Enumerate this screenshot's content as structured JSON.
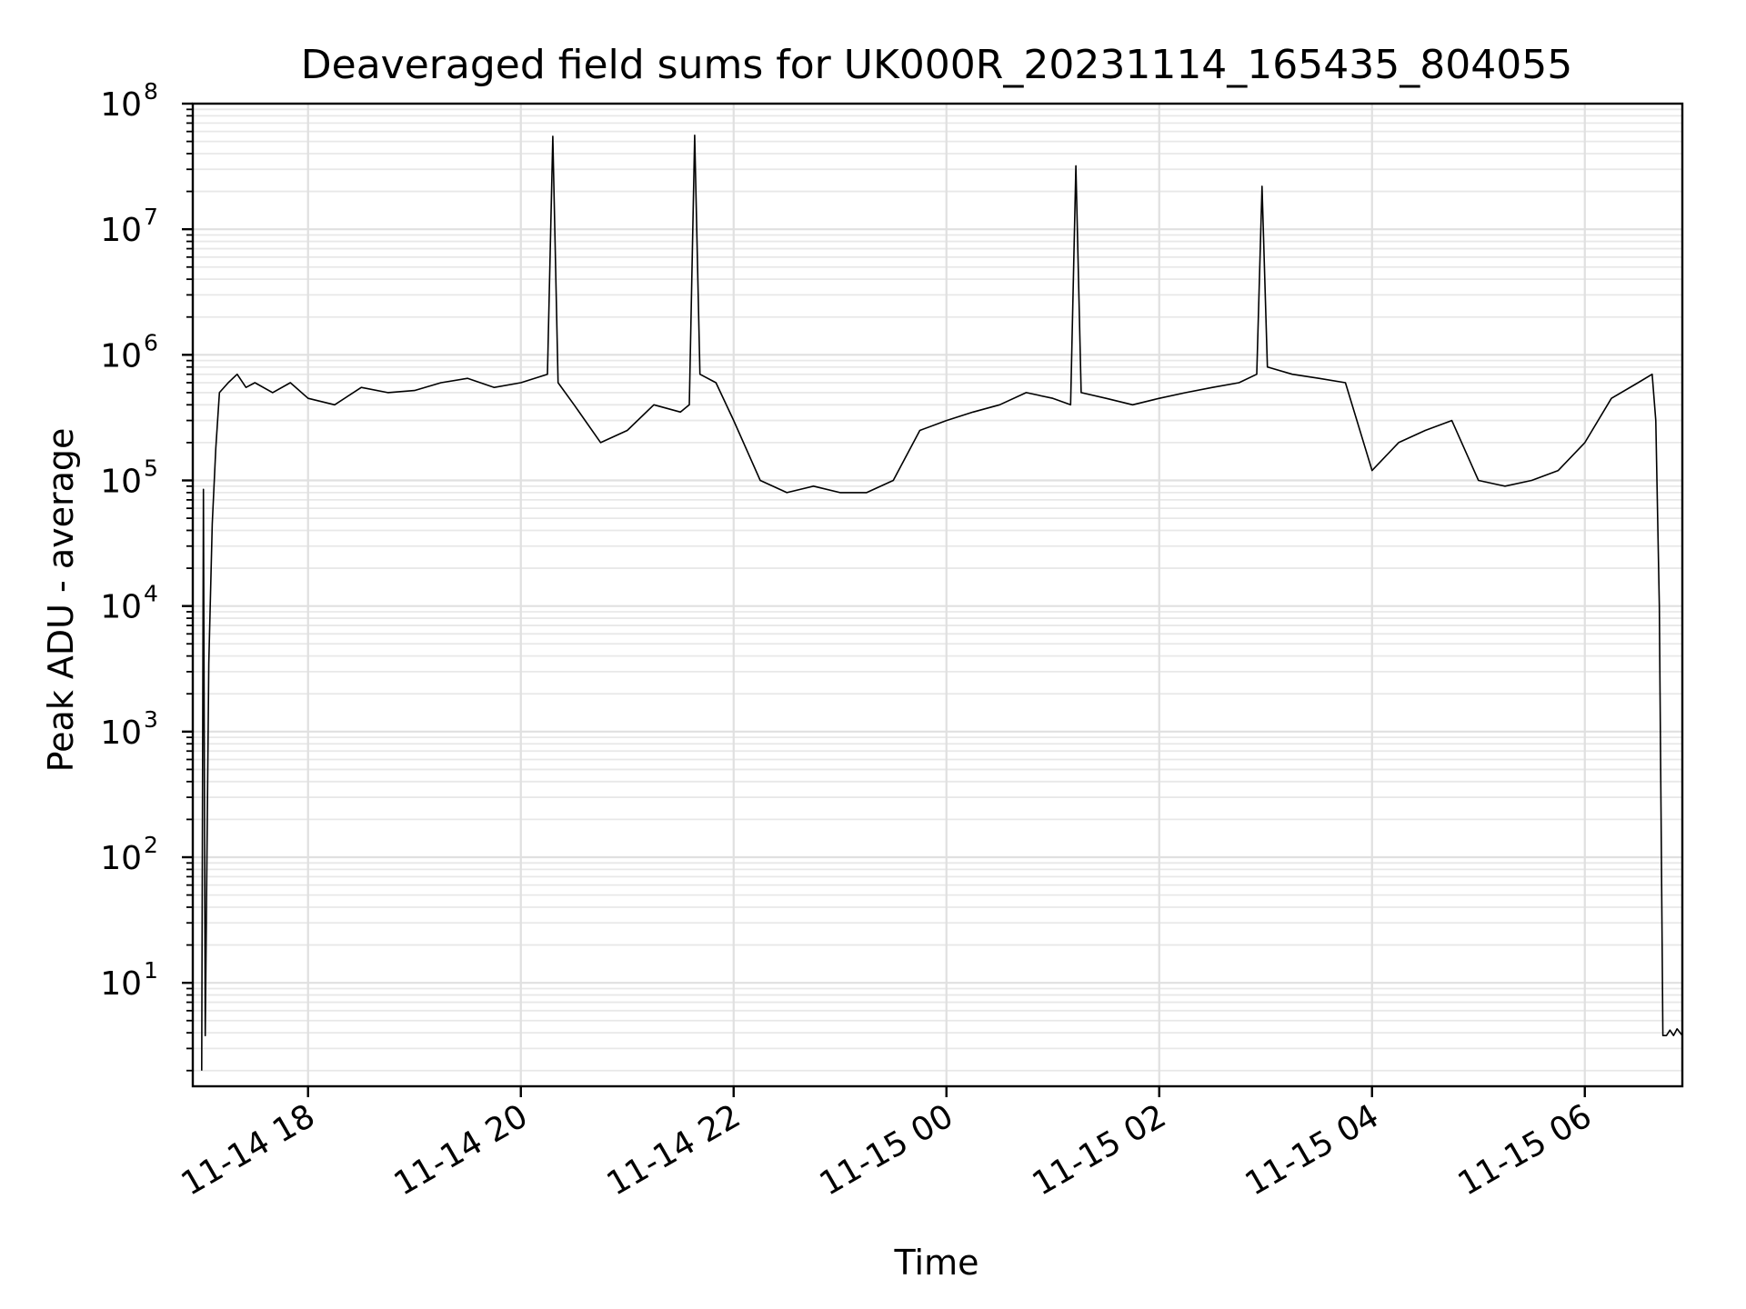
{
  "chart_data": {
    "type": "line",
    "title": "Deaveraged field sums for UK000R_20231114_165435_804055",
    "xlabel": "Time",
    "ylabel": "Peak ADU - average",
    "y_scale": "log",
    "ylim": [
      1.5,
      100000000
    ],
    "xlim": [
      "2023-11-14 16:55",
      "2023-11-15 06:55"
    ],
    "grid": true,
    "line_color": "#000000",
    "x_tick_labels": [
      "11-14 18",
      "11-14 20",
      "11-14 22",
      "11-15 00",
      "11-15 02",
      "11-15 04",
      "11-15 06"
    ],
    "x_tick_values": [
      "2023-11-14 18:00",
      "2023-11-14 20:00",
      "2023-11-14 22:00",
      "2023-11-15 00:00",
      "2023-11-15 02:00",
      "2023-11-15 04:00",
      "2023-11-15 06:00"
    ],
    "y_ticks": [
      {
        "base": "10",
        "exp": "1",
        "value": 10
      },
      {
        "base": "10",
        "exp": "2",
        "value": 100
      },
      {
        "base": "10",
        "exp": "3",
        "value": 1000
      },
      {
        "base": "10",
        "exp": "4",
        "value": 10000
      },
      {
        "base": "10",
        "exp": "5",
        "value": 100000
      },
      {
        "base": "10",
        "exp": "6",
        "value": 1000000
      },
      {
        "base": "10",
        "exp": "7",
        "value": 10000000
      },
      {
        "base": "10",
        "exp": "8",
        "value": 100000000
      }
    ],
    "series": [
      {
        "x": [
          "2023-11-14 17:00",
          "2023-11-14 17:01",
          "2023-11-14 17:02",
          "2023-11-14 17:04",
          "2023-11-14 17:06",
          "2023-11-14 17:08",
          "2023-11-14 17:10",
          "2023-11-14 17:15",
          "2023-11-14 17:20",
          "2023-11-14 17:25",
          "2023-11-14 17:30",
          "2023-11-14 17:40",
          "2023-11-14 17:50",
          "2023-11-14 18:00",
          "2023-11-14 18:15",
          "2023-11-14 18:30",
          "2023-11-14 18:45",
          "2023-11-14 19:00",
          "2023-11-14 19:15",
          "2023-11-14 19:30",
          "2023-11-14 19:45",
          "2023-11-14 20:00",
          "2023-11-14 20:15",
          "2023-11-14 20:18",
          "2023-11-14 20:21",
          "2023-11-14 20:30",
          "2023-11-14 20:45",
          "2023-11-14 21:00",
          "2023-11-14 21:15",
          "2023-11-14 21:30",
          "2023-11-14 21:35",
          "2023-11-14 21:38",
          "2023-11-14 21:41",
          "2023-11-14 21:50",
          "2023-11-14 22:00",
          "2023-11-14 22:15",
          "2023-11-14 22:30",
          "2023-11-14 22:45",
          "2023-11-14 23:00",
          "2023-11-14 23:15",
          "2023-11-14 23:30",
          "2023-11-14 23:45",
          "2023-11-15 00:00",
          "2023-11-15 00:15",
          "2023-11-15 00:30",
          "2023-11-15 00:45",
          "2023-11-15 01:00",
          "2023-11-15 01:10",
          "2023-11-15 01:13",
          "2023-11-15 01:16",
          "2023-11-15 01:30",
          "2023-11-15 01:45",
          "2023-11-15 02:00",
          "2023-11-15 02:15",
          "2023-11-15 02:30",
          "2023-11-15 02:45",
          "2023-11-15 02:55",
          "2023-11-15 02:58",
          "2023-11-15 03:01",
          "2023-11-15 03:15",
          "2023-11-15 03:30",
          "2023-11-15 03:45",
          "2023-11-15 04:00",
          "2023-11-15 04:15",
          "2023-11-15 04:30",
          "2023-11-15 04:45",
          "2023-11-15 05:00",
          "2023-11-15 05:15",
          "2023-11-15 05:30",
          "2023-11-15 05:45",
          "2023-11-15 06:00",
          "2023-11-15 06:15",
          "2023-11-15 06:30",
          "2023-11-15 06:38",
          "2023-11-15 06:40",
          "2023-11-15 06:42",
          "2023-11-15 06:44",
          "2023-11-15 06:46",
          "2023-11-15 06:48",
          "2023-11-15 06:50",
          "2023-11-15 06:52",
          "2023-11-15 06:55"
        ],
        "y": [
          2,
          85000,
          3.8,
          3500,
          45000,
          180000,
          500000,
          600000,
          700000,
          550000,
          600000,
          500000,
          600000,
          450000,
          400000,
          550000,
          500000,
          520000,
          600000,
          650000,
          550000,
          600000,
          700000,
          55000000,
          600000,
          400000,
          200000,
          250000,
          400000,
          350000,
          400000,
          56000000,
          700000,
          600000,
          300000,
          100000,
          80000,
          90000,
          80000,
          80000,
          100000,
          250000,
          300000,
          350000,
          400000,
          500000,
          450000,
          400000,
          32000000,
          500000,
          450000,
          400000,
          450000,
          500000,
          550000,
          600000,
          700000,
          22000000,
          800000,
          700000,
          650000,
          600000,
          120000,
          200000,
          250000,
          300000,
          100000,
          90000,
          100000,
          120000,
          200000,
          450000,
          600000,
          700000,
          300000,
          10000,
          3.8,
          3.8,
          4.2,
          3.8,
          4.3,
          3.8
        ]
      }
    ]
  }
}
